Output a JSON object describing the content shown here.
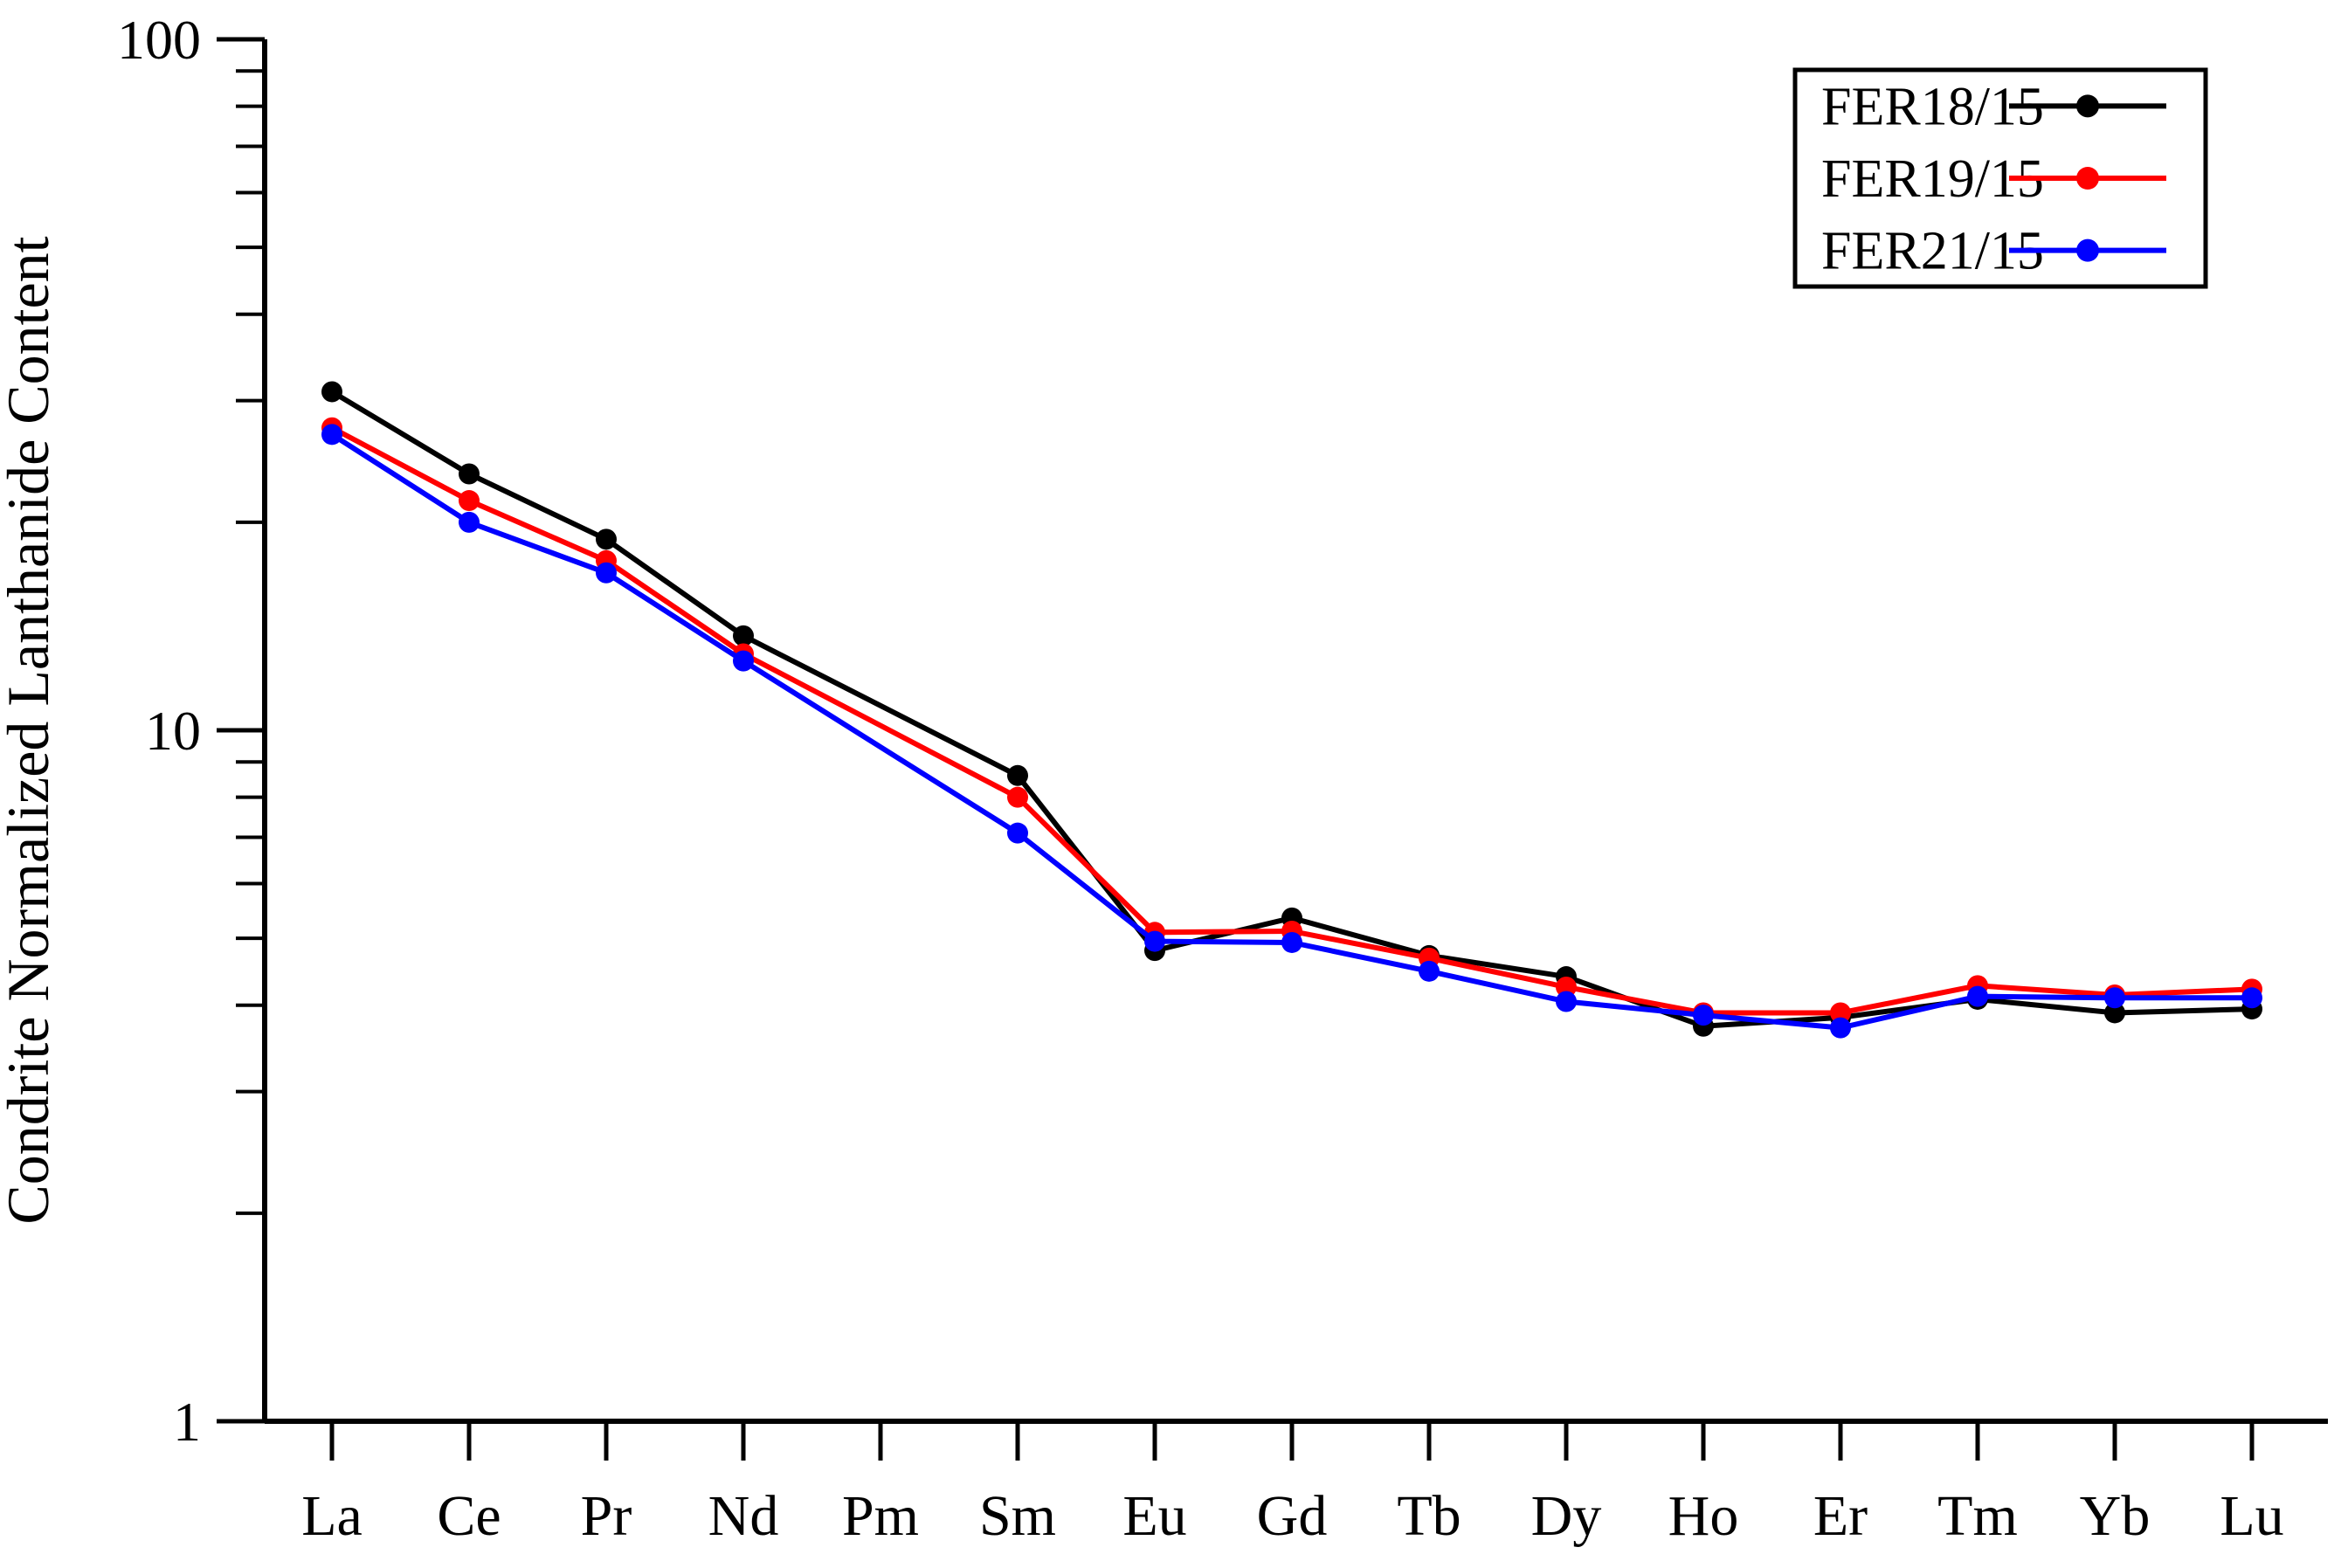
{
  "figure": {
    "background": "#ffffff",
    "text_color": "#000000"
  },
  "y_axis": {
    "title": "Condrite Normalized Lanthanide Content",
    "scale": "log",
    "major_tick_labels": [
      "100",
      "10",
      "1"
    ],
    "major_tick_values": [
      100,
      10,
      1
    ]
  },
  "x_axis": {
    "title": "",
    "tick_labels": [
      "La",
      "Ce",
      "Pr",
      "Nd",
      "Pm",
      "Sm",
      "Eu",
      "Gd",
      "Tb",
      "Dy",
      "Ho",
      "Er",
      "Tm",
      "Yb",
      "Lu"
    ]
  },
  "legend": {
    "position": "top-right",
    "items": [
      {
        "label": "FER18/15",
        "color": "#000000",
        "marker": "filled-circle-on-line"
      },
      {
        "label": "FER19/15",
        "color": "#ff0000",
        "marker": "filled-circle-on-line"
      },
      {
        "label": "FER21/15",
        "color": "#0000ff",
        "marker": "filled-circle-on-line"
      }
    ]
  },
  "chart_data": {
    "type": "line",
    "title": "",
    "xlabel": "",
    "ylabel": "Condrite Normalized Lanthanide Content",
    "y_scale": "log",
    "ylim": [
      1,
      100
    ],
    "y_major_ticks": [
      1,
      10,
      100
    ],
    "grid": false,
    "legend_position": "top-right",
    "marker": "circle",
    "categories": [
      "La",
      "Ce",
      "Pr",
      "Nd",
      "Pm",
      "Sm",
      "Eu",
      "Gd",
      "Tb",
      "Dy",
      "Ho",
      "Er",
      "Tm",
      "Yb",
      "Lu"
    ],
    "series": [
      {
        "name": "FER18/15",
        "color": "#000000",
        "values": [
          30.9,
          23.5,
          18.9,
          13.7,
          null,
          8.6,
          4.8,
          5.35,
          4.72,
          4.4,
          3.73,
          3.84,
          4.08,
          3.9,
          3.95
        ]
      },
      {
        "name": "FER19/15",
        "color": "#ff0000",
        "values": [
          27.4,
          21.5,
          17.6,
          12.9,
          null,
          8.0,
          5.1,
          5.12,
          4.68,
          4.25,
          3.9,
          3.9,
          4.27,
          4.14,
          4.22
        ]
      },
      {
        "name": "FER21/15",
        "color": "#0000ff",
        "values": [
          26.8,
          20.0,
          16.9,
          12.6,
          null,
          7.1,
          4.95,
          4.93,
          4.48,
          4.05,
          3.87,
          3.71,
          4.12,
          4.1,
          4.1
        ]
      }
    ]
  }
}
